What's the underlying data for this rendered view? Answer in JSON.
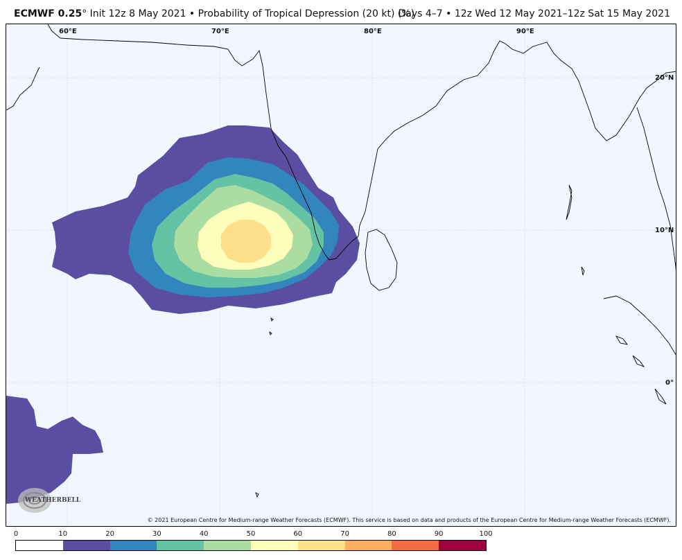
{
  "header": {
    "model": "ECMWF 0.25",
    "degree_symbol": "°",
    "title_rest": " Init 12z 8 May 2021 • Probability of Tropical Depression (20 kt) (%)",
    "valid_period": "Days 4–7 • 12z Wed 12 May 2021–12z Sat 15 May 2021"
  },
  "map": {
    "region": "North Indian Ocean / Arabian Sea",
    "longitude_labels": [
      "60°E",
      "70°E",
      "80°E",
      "90°E"
    ],
    "latitude_labels": [
      "20°N",
      "10°N",
      "0°"
    ],
    "colors": {
      "ocean": "#f2f7ff",
      "coast": "#000000",
      "grid": "#c8cfd8"
    }
  },
  "probability_field": {
    "label": "Probability of Tropical Depression (20 kt) (%)",
    "max_contour_percent": 60,
    "centroid_lon": 71.8,
    "centroid_lat": 11.0,
    "note_visible": ""
  },
  "colorbar": {
    "ticks": [
      "0",
      "10",
      "20",
      "30",
      "40",
      "50",
      "60",
      "70",
      "80",
      "90",
      "100"
    ],
    "colors": [
      "#ffffff",
      "#5b4ea2",
      "#3286bd",
      "#65c2a5",
      "#abdda3",
      "#fdfebb",
      "#fee08b",
      "#fdae60",
      "#f46c43",
      "#9e0142"
    ]
  },
  "footer": {
    "copyright": "© 2021 European Centre for Medium-range Weather Forecasts (ECMWF). This service is based on data and products of the European Centre for Medium-range Weather Forecasts (ECMWF).",
    "logo_text": "WEATHERBELL"
  }
}
